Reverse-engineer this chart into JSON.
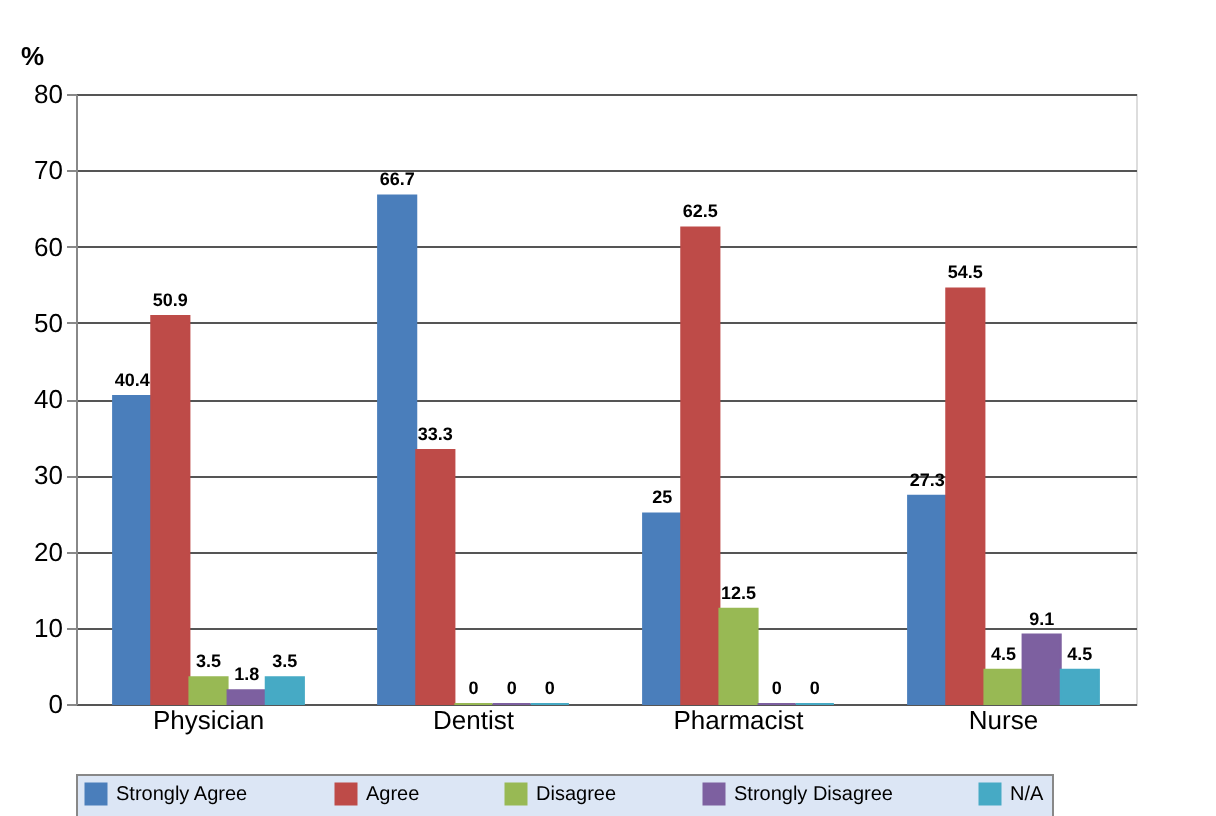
{
  "chart_data": {
    "type": "bar",
    "ylabel": "%",
    "categories": [
      "Physician",
      "Dentist",
      "Pharmacist",
      "Nurse"
    ],
    "series": [
      {
        "name": "Strongly Agree",
        "color": "#4a7ebb",
        "values": [
          40.4,
          66.7,
          25,
          27.3
        ]
      },
      {
        "name": "Agree",
        "color": "#be4b48",
        "values": [
          50.9,
          33.3,
          62.5,
          54.5
        ]
      },
      {
        "name": "Disagree",
        "color": "#98b954",
        "values": [
          3.5,
          0,
          12.5,
          4.5
        ]
      },
      {
        "name": "Strongly Disagree",
        "color": "#7d60a0",
        "values": [
          1.8,
          0,
          0,
          9.1
        ]
      },
      {
        "name": "N/A",
        "color": "#46aac5",
        "values": [
          3.5,
          0,
          0,
          4.5
        ]
      }
    ],
    "ylim": [
      0,
      80
    ],
    "yticks": [
      0,
      10,
      20,
      30,
      40,
      50,
      60,
      70,
      80
    ],
    "grid": "y",
    "legend": "bottom",
    "data_labels": true
  }
}
